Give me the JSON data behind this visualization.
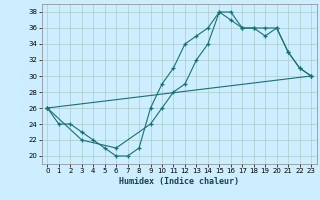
{
  "xlabel": "Humidex (Indice chaleur)",
  "bg_color": "#cceeff",
  "grid_color": "#aacccc",
  "line_color": "#1a7070",
  "xlim": [
    -0.5,
    23.5
  ],
  "ylim": [
    19.0,
    39.0
  ],
  "yticks": [
    20,
    22,
    24,
    26,
    28,
    30,
    32,
    34,
    36,
    38
  ],
  "xticks": [
    0,
    1,
    2,
    3,
    4,
    5,
    6,
    7,
    8,
    9,
    10,
    11,
    12,
    13,
    14,
    15,
    16,
    17,
    18,
    19,
    20,
    21,
    22,
    23
  ],
  "line1_x": [
    0,
    1,
    2,
    3,
    4,
    5,
    6,
    7,
    8,
    9,
    10,
    11,
    12,
    13,
    14,
    15,
    16,
    17,
    18,
    19,
    20,
    21,
    22,
    23
  ],
  "line1_y": [
    26,
    24,
    24,
    23,
    22,
    21,
    20,
    20,
    21,
    26,
    29,
    31,
    34,
    35,
    36,
    38,
    38,
    36,
    36,
    36,
    36,
    33,
    31,
    30
  ],
  "line2_x": [
    0,
    3,
    6,
    9,
    10,
    11,
    12,
    13,
    14,
    15,
    16,
    17,
    18,
    19,
    20,
    21,
    22,
    23
  ],
  "line2_y": [
    26,
    22,
    21,
    24,
    26,
    28,
    29,
    32,
    34,
    38,
    37,
    36,
    36,
    35,
    36,
    33,
    31,
    30
  ],
  "line3_x": [
    0,
    23
  ],
  "line3_y": [
    26,
    30
  ]
}
